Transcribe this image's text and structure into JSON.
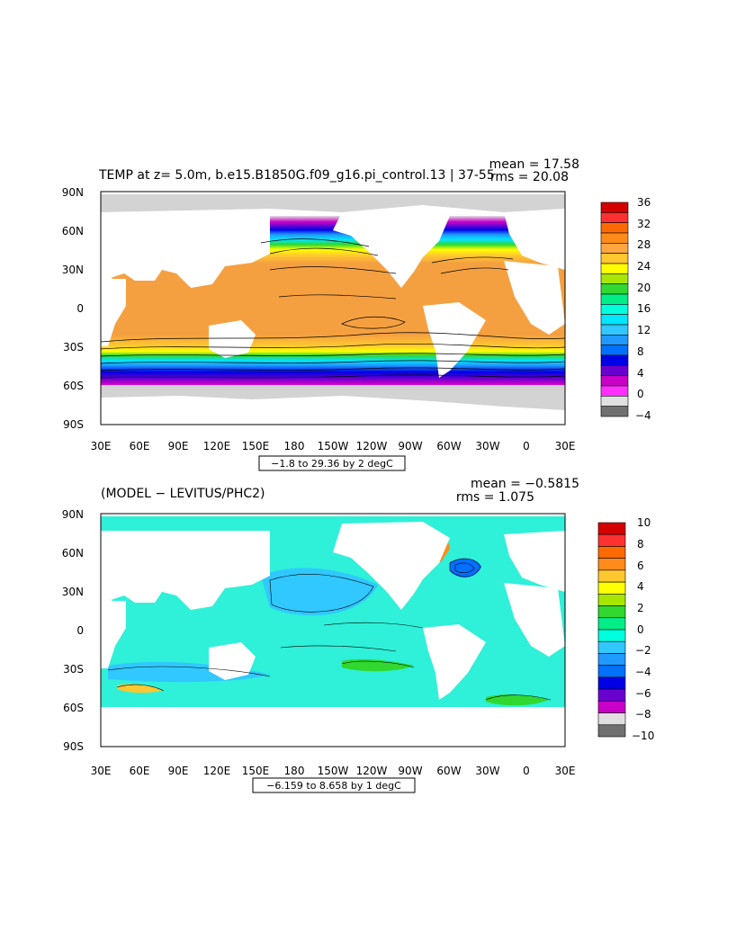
{
  "panels": [
    {
      "title": "TEMP at z=    5.0m, b.e15.B1850G.f09_g16.pi_control.13 | 37-55",
      "mean_label": "mean = 17.58",
      "rms_label": "rms = 20.08",
      "range_label": "−1.8 to 29.36 by 2 degC",
      "colorbar": {
        "labels": [
          "36",
          "32",
          "28",
          "24",
          "20",
          "16",
          "12",
          "8",
          "4",
          "0",
          "−4"
        ],
        "colors": [
          "#d40000",
          "#ff3030",
          "#ff6a00",
          "#ff8c1a",
          "#ffa640",
          "#ffc830",
          "#ffff00",
          "#a8e600",
          "#30d830",
          "#00ee88",
          "#00ffdd",
          "#00e6ff",
          "#30c8ff",
          "#209aff",
          "#0070ff",
          "#0000e6",
          "#6a00d0",
          "#c800c8",
          "#ff30ff",
          "#e0e0e0",
          "#707070"
        ]
      }
    },
    {
      "title": "(MODEL − LEVITUS/PHC2)",
      "mean_label": "mean = −0.5815",
      "rms_label": "rms = 1.075",
      "range_label": "−6.159 to 8.658 by 1 degC",
      "colorbar": {
        "labels": [
          "10",
          "8",
          "6",
          "4",
          "2",
          "0",
          "−2",
          "−4",
          "−6",
          "−8",
          "−10"
        ],
        "colors": [
          "#d40000",
          "#ff3030",
          "#ff6a00",
          "#ff8c1a",
          "#ffc830",
          "#ffff00",
          "#a8e600",
          "#30d830",
          "#00ee88",
          "#00ffdd",
          "#30c8ff",
          "#209aff",
          "#0070ff",
          "#0000e6",
          "#6a00d0",
          "#c800c8",
          "#e0e0e0",
          "#707070"
        ]
      }
    }
  ],
  "axes": {
    "lat_labels": [
      "90N",
      "60N",
      "30N",
      "0",
      "30S",
      "60S",
      "90S"
    ],
    "lon_labels": [
      "30E",
      "60E",
      "90E",
      "120E",
      "150E",
      "180",
      "150W",
      "120W",
      "90W",
      "60W",
      "30W",
      "0",
      "30E"
    ]
  },
  "colors": {
    "land": "#ffffff",
    "ice": "#d3d3d3",
    "ocean_warm": "#f5a040",
    "ocean_anom": "#2ff0d8"
  }
}
